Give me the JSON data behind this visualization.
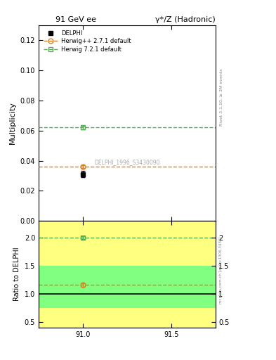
{
  "title_left": "91 GeV ee",
  "title_right": "γ*/Z (Hadronic)",
  "ylabel_main": "Multiplicity",
  "ylabel_ratio": "Ratio to DELPHI",
  "right_label_main": "Rivet 3.1.10, ≥ 3M events",
  "right_label_ratio": "mcplots.cern.ch [arXiv:1306.3436]",
  "watermark": "DELPHI_1996_S3430090",
  "xlim": [
    90.75,
    91.75
  ],
  "xticks": [
    91.0,
    91.5
  ],
  "ylim_main": [
    0.0,
    0.13
  ],
  "yticks_main": [
    0.0,
    0.02,
    0.04,
    0.06,
    0.08,
    0.1,
    0.12
  ],
  "ylim_ratio": [
    0.4,
    2.3
  ],
  "yticks_ratio": [
    0.5,
    1.0,
    1.5,
    2.0
  ],
  "data_x": 91.0,
  "data_y": 0.031,
  "data_yerr": 0.002,
  "herwig_x": 91.0,
  "herwig_y": 0.036,
  "herwig_yerr": 0.001,
  "herwig_color": "#e08020",
  "herwig7_x": 91.0,
  "herwig7_y": 0.062,
  "herwig7_yerr": 0.001,
  "herwig7_color": "#50b050",
  "delphi_color": "#000000",
  "band_green_ymin": 0.75,
  "band_green_ymax": 1.5,
  "band_yellow_ymin": 0.4,
  "band_yellow_ymax": 2.3,
  "ratio_herwig": 1.16,
  "ratio_herwig7": 2.0,
  "ratio_herwig_err": 0.03,
  "ratio_herwig7_err": 0.03,
  "color_yellow": "#ffff80",
  "color_green": "#80ff80"
}
